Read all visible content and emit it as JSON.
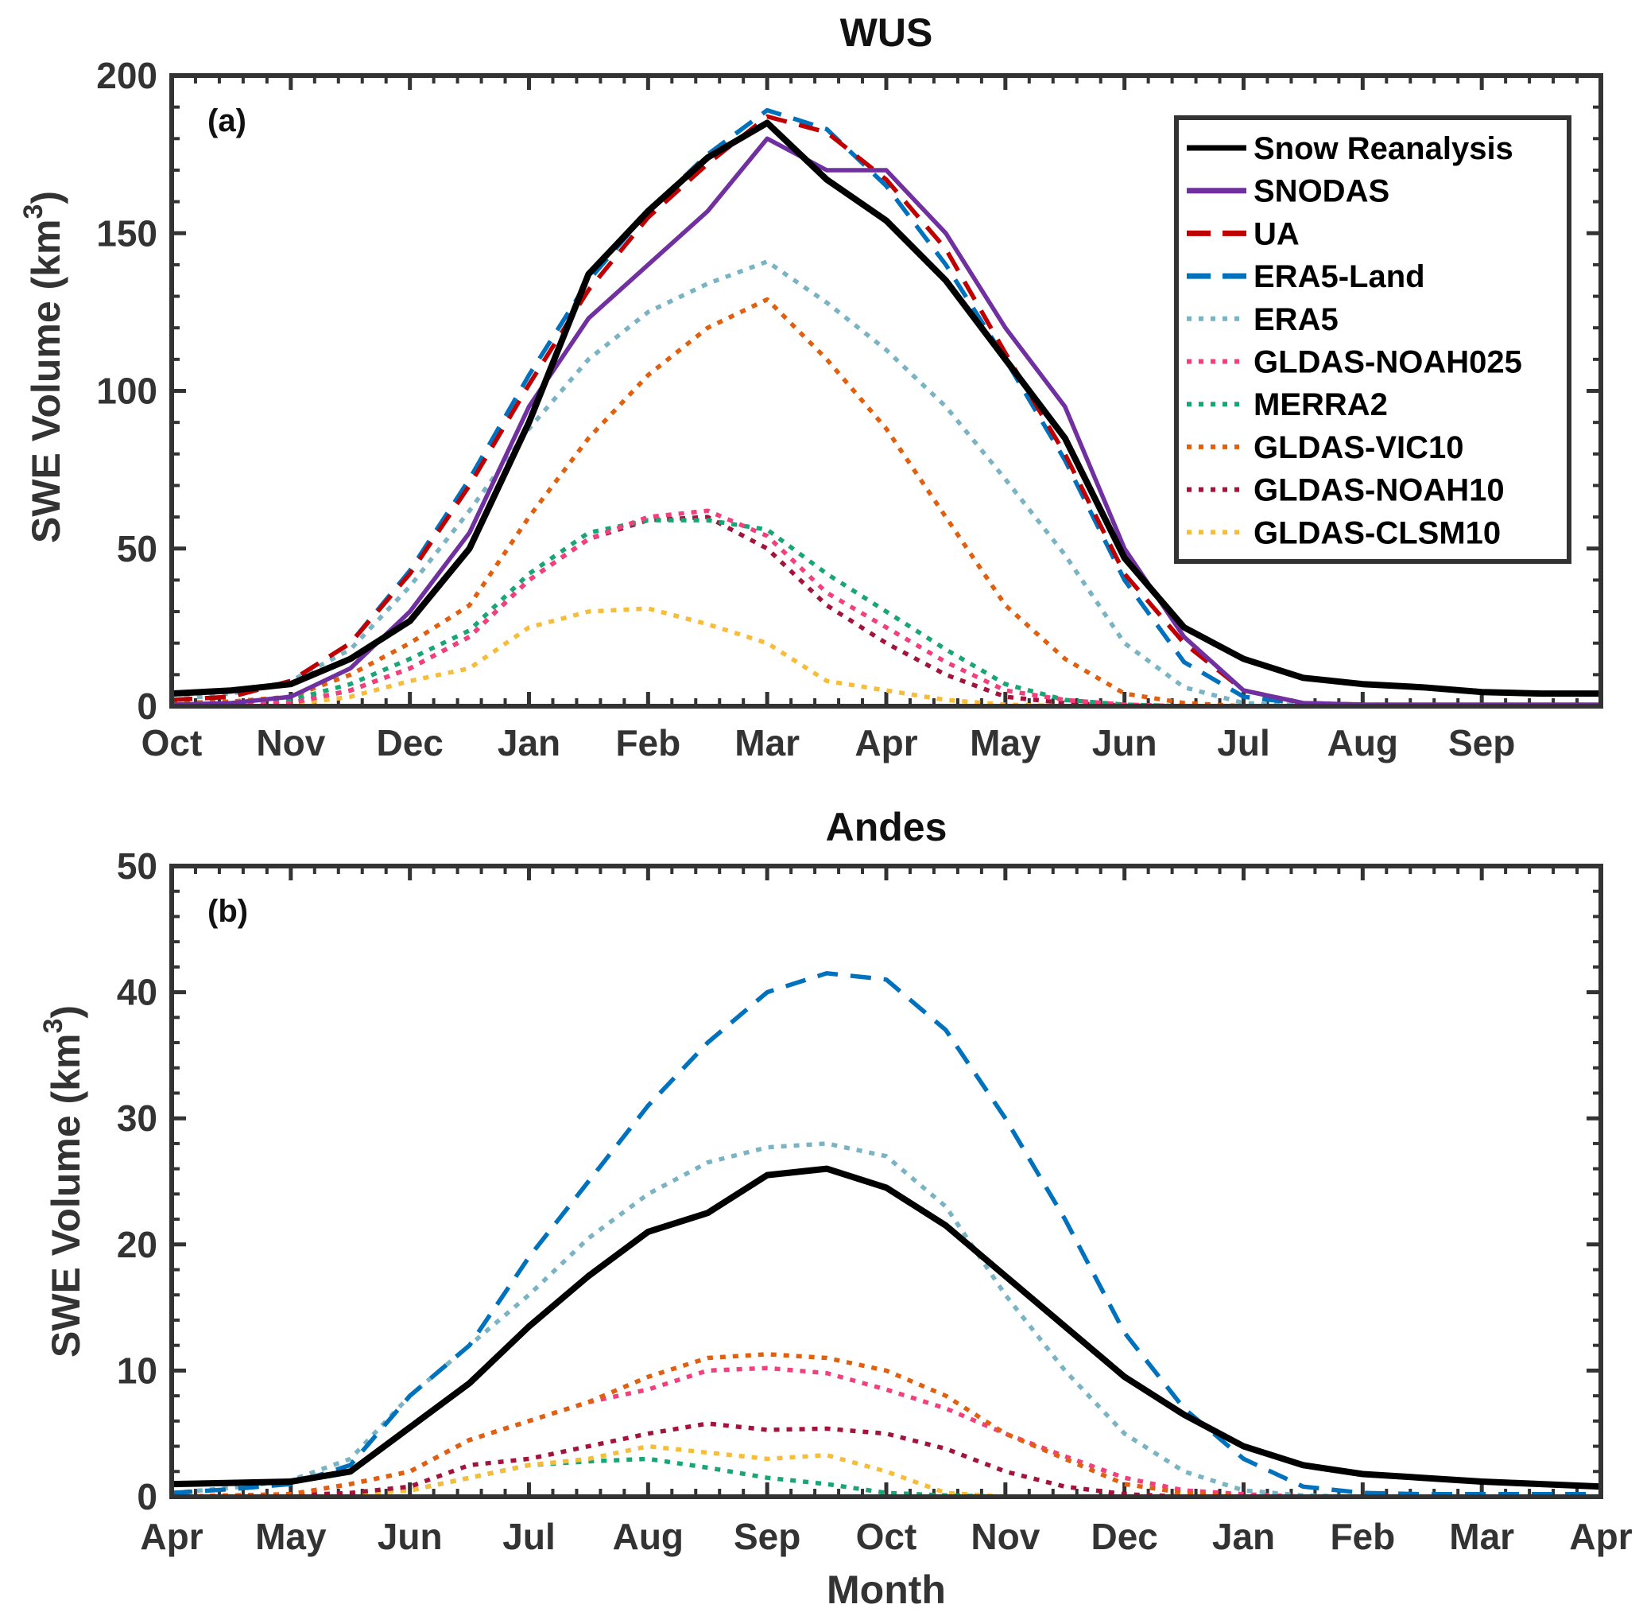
{
  "chart_data": [
    {
      "type": "line",
      "title": "WUS",
      "panel_label": "(a)",
      "xlabel": "",
      "ylabel": "SWE Volume (km",
      "ylabel_sup": "3",
      "ylabel_end": ")",
      "ylim": [
        0,
        200
      ],
      "yticks": [
        0,
        50,
        100,
        150,
        200
      ],
      "xlim": [
        0,
        12
      ],
      "xtick_labels": [
        "Oct",
        "Nov",
        "Dec",
        "Jan",
        "Feb",
        "Mar",
        "Apr",
        "May",
        "Jun",
        "Jul",
        "Aug",
        "Sep"
      ],
      "x": [
        0,
        0.5,
        1,
        1.5,
        2,
        2.5,
        3,
        3.5,
        4,
        4.5,
        5,
        5.5,
        6,
        6.5,
        7,
        7.5,
        8,
        8.5,
        9,
        9.5,
        10,
        10.5,
        11,
        11.5,
        12
      ],
      "legend_position": "top-right",
      "series": [
        {
          "name": "Snow Reanalysis",
          "color": "#000000",
          "style": "solid",
          "values": [
            4,
            5,
            7,
            15,
            27,
            50,
            90,
            137,
            157,
            174,
            185,
            167,
            154,
            135,
            110,
            85,
            47,
            25,
            15,
            9,
            7,
            6,
            4.5,
            4,
            4
          ]
        },
        {
          "name": "SNODAS",
          "color": "#7030a0",
          "style": "solid",
          "values": [
            0.5,
            1,
            3,
            12,
            30,
            55,
            95,
            123,
            140,
            157,
            180,
            170,
            170,
            150,
            120,
            95,
            50,
            22,
            5,
            1,
            0.5,
            0.5,
            0.5,
            0.5,
            0.5
          ]
        },
        {
          "name": "UA",
          "color": "#c00000",
          "style": "dashed",
          "values": [
            2,
            3,
            8,
            20,
            42,
            70,
            102,
            132,
            155,
            172,
            187,
            182,
            167,
            145,
            112,
            80,
            42,
            20,
            5,
            1,
            0.5,
            0.3,
            0.2,
            0.2,
            0.2
          ]
        },
        {
          "name": "ERA5-Land",
          "color": "#0072bd",
          "style": "dashed",
          "values": [
            2,
            3,
            8,
            20,
            43,
            72,
            105,
            135,
            157,
            175,
            189,
            183,
            165,
            140,
            110,
            78,
            40,
            14,
            3,
            0.8,
            0.3,
            0.2,
            0.2,
            0.2,
            0.2
          ]
        },
        {
          "name": "ERA5",
          "color": "#7ab4c4",
          "style": "dotted",
          "values": [
            2,
            4,
            8,
            18,
            38,
            62,
            88,
            110,
            125,
            134,
            141,
            128,
            113,
            95,
            72,
            48,
            20,
            6,
            1,
            0.3,
            0,
            0,
            0,
            0,
            0
          ]
        },
        {
          "name": "GLDAS-NOAH025",
          "color": "#f2407f",
          "style": "dotted",
          "values": [
            0,
            0.3,
            1,
            5,
            12,
            22,
            40,
            53,
            60,
            62,
            54,
            36,
            25,
            14,
            5,
            2,
            0.5,
            0,
            0,
            0,
            0,
            0,
            0,
            0,
            0
          ]
        },
        {
          "name": "MERRA2",
          "color": "#1aa574",
          "style": "dotted",
          "values": [
            0.5,
            1,
            2,
            7,
            15,
            24,
            42,
            55,
            59,
            59,
            56,
            42,
            30,
            18,
            7,
            2,
            0.5,
            0,
            0,
            0,
            0,
            0,
            0,
            0,
            0
          ]
        },
        {
          "name": "GLDAS-VIC10",
          "color": "#e0600f",
          "style": "dotted",
          "values": [
            1,
            1.5,
            3,
            10,
            20,
            32,
            60,
            85,
            105,
            120,
            129,
            110,
            88,
            60,
            32,
            15,
            4,
            1,
            0,
            0,
            0,
            0,
            0,
            0,
            0
          ]
        },
        {
          "name": "GLDAS-NOAH10",
          "color": "#a3143c",
          "style": "dotted",
          "values": [
            0,
            0.3,
            1,
            5,
            12,
            22,
            40,
            53,
            59,
            60,
            50,
            32,
            20,
            10,
            3,
            1,
            0.2,
            0,
            0,
            0,
            0,
            0,
            0,
            0,
            0
          ]
        },
        {
          "name": "GLDAS-CLSM10",
          "color": "#f7bd3a",
          "style": "dotted",
          "values": [
            0,
            0,
            0.5,
            3,
            8,
            12,
            25,
            30,
            31,
            26,
            20,
            8,
            5,
            2,
            0.5,
            0,
            0,
            0,
            0,
            0,
            0,
            0,
            0,
            0,
            0
          ]
        }
      ]
    },
    {
      "type": "line",
      "title": "Andes",
      "panel_label": "(b)",
      "xlabel": "Month",
      "ylabel": "SWE Volume (km",
      "ylabel_sup": "3",
      "ylabel_end": ")",
      "ylim": [
        0,
        50
      ],
      "yticks": [
        0,
        10,
        20,
        30,
        40,
        50
      ],
      "xlim": [
        0,
        12
      ],
      "xtick_labels": [
        "Apr",
        "May",
        "Jun",
        "Jul",
        "Aug",
        "Sep",
        "Oct",
        "Nov",
        "Dec",
        "Jan",
        "Feb",
        "Mar",
        "Apr"
      ],
      "x": [
        0,
        0.5,
        1,
        1.5,
        2,
        2.5,
        3,
        3.5,
        4,
        4.5,
        5,
        5.5,
        6,
        6.5,
        7,
        7.5,
        8,
        8.5,
        9,
        9.5,
        10,
        10.5,
        11,
        11.5,
        12
      ],
      "series": [
        {
          "name": "Snow Reanalysis",
          "color": "#000000",
          "style": "solid",
          "values": [
            1,
            1.1,
            1.2,
            2,
            5.5,
            9,
            13.5,
            17.5,
            21,
            22.5,
            25.5,
            26,
            24.5,
            21.5,
            17.5,
            13.5,
            9.5,
            6.5,
            4,
            2.5,
            1.8,
            1.5,
            1.2,
            1,
            0.8
          ]
        },
        {
          "name": "ERA5-Land",
          "color": "#0072bd",
          "style": "dashed",
          "values": [
            0.3,
            0.6,
            1,
            2.5,
            8,
            12,
            19,
            25,
            31,
            36,
            40,
            41.5,
            41,
            37,
            30,
            22,
            13,
            7,
            3,
            0.8,
            0.3,
            0.2,
            0.2,
            0.2,
            0.2
          ]
        },
        {
          "name": "ERA5",
          "color": "#7ab4c4",
          "style": "dotted",
          "values": [
            0.3,
            0.7,
            1.3,
            3,
            8,
            12,
            16,
            20.5,
            24,
            26.5,
            27.7,
            28,
            27,
            23,
            16,
            10,
            5,
            2,
            0.5,
            0.1,
            0,
            0,
            0,
            0,
            0
          ]
        },
        {
          "name": "GLDAS-VIC10",
          "color": "#e0600f",
          "style": "dotted",
          "values": [
            0,
            0.1,
            0.2,
            1,
            2,
            4.5,
            6,
            7.5,
            9.5,
            11,
            11.3,
            11,
            10,
            8,
            5,
            3,
            1,
            0.3,
            0,
            0,
            0,
            0,
            0,
            0,
            0
          ]
        },
        {
          "name": "GLDAS-NOAH025",
          "color": "#f2407f",
          "style": "dotted",
          "values": [
            0,
            0.1,
            0.2,
            1,
            2,
            4.5,
            6,
            7.5,
            8.5,
            10,
            10.2,
            9.8,
            8.5,
            7,
            5,
            3.2,
            1.5,
            0.5,
            0.2,
            0,
            0,
            0,
            0,
            0,
            0
          ]
        },
        {
          "name": "GLDAS-NOAH10",
          "color": "#a3143c",
          "style": "dotted",
          "values": [
            0,
            0,
            0.1,
            0.3,
            0.8,
            2.5,
            3,
            4,
            5,
            5.8,
            5.3,
            5.4,
            5,
            3.8,
            2,
            0.8,
            0.2,
            0,
            0,
            0,
            0,
            0,
            0,
            0,
            0
          ]
        },
        {
          "name": "GLDAS-CLSM10",
          "color": "#f7bd3a",
          "style": "dotted",
          "values": [
            0,
            0,
            0,
            0.2,
            0.5,
            1.5,
            2.5,
            3,
            4,
            3.5,
            3,
            3.3,
            2,
            0.3,
            0,
            0,
            0,
            0,
            0,
            0,
            0,
            0,
            0,
            0,
            0
          ]
        },
        {
          "name": "MERRA2",
          "color": "#1aa574",
          "style": "dotted",
          "values": [
            0,
            0,
            0,
            0.2,
            0.5,
            1.5,
            2.5,
            2.8,
            3,
            2.3,
            1.5,
            1,
            0.3,
            0.1,
            0,
            0,
            0,
            0,
            0,
            0,
            0,
            0,
            0,
            0,
            0
          ]
        }
      ]
    }
  ]
}
